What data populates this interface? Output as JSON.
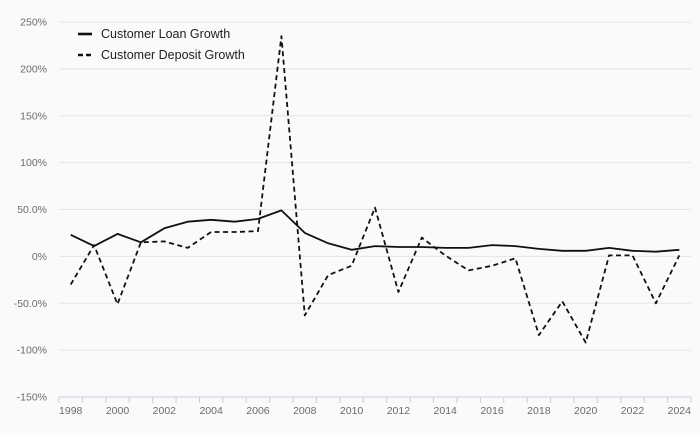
{
  "chart": {
    "legend": [
      {
        "label": "Customer Loan Growth",
        "style": "solid"
      },
      {
        "label": "Customer Deposit Growth",
        "style": "dashed"
      }
    ],
    "colors": {
      "background": "#fafafa",
      "grid": "#e4e4e4",
      "axis": "#c7cede",
      "tick_label": "#6b6b6b",
      "line": "#111111"
    }
  },
  "chart_data": {
    "type": "line",
    "title": "",
    "xlabel": "",
    "ylabel": "",
    "grid": true,
    "legend_position": "top-left",
    "ylim": [
      -150,
      250
    ],
    "y_ticks": [
      "250%",
      "200%",
      "150%",
      "100%",
      "50.0%",
      "0%",
      "-50.0%",
      "-100%",
      "-150%"
    ],
    "y_tick_values": [
      250,
      200,
      150,
      100,
      50,
      0,
      -50,
      -100,
      -150
    ],
    "x": [
      1998,
      1999,
      2000,
      2001,
      2002,
      2003,
      2004,
      2005,
      2006,
      2007,
      2008,
      2009,
      2010,
      2011,
      2012,
      2013,
      2014,
      2015,
      2016,
      2017,
      2018,
      2019,
      2020,
      2021,
      2022,
      2023,
      2024
    ],
    "x_tick_labels": [
      "1998",
      "2000",
      "2002",
      "2004",
      "2006",
      "2008",
      "2010",
      "2012",
      "2014",
      "2016",
      "2018",
      "2020",
      "2022",
      "2024"
    ],
    "series": [
      {
        "name": "Customer Loan Growth",
        "dash": "solid",
        "values": [
          23,
          11,
          24,
          15,
          30,
          37,
          39,
          37,
          40,
          49,
          25,
          14,
          7,
          11,
          10,
          10,
          9,
          9,
          12,
          11,
          8,
          6,
          6,
          9,
          6,
          5,
          7
        ]
      },
      {
        "name": "Customer Deposit Growth",
        "dash": "dashed",
        "values": [
          -30,
          12,
          -51,
          15,
          16,
          9,
          26,
          26,
          27,
          235,
          -63,
          -20,
          -10,
          52,
          -38,
          20,
          1,
          -15,
          -10,
          -2,
          -84,
          -48,
          -92,
          1,
          1,
          -50,
          1
        ]
      }
    ]
  }
}
